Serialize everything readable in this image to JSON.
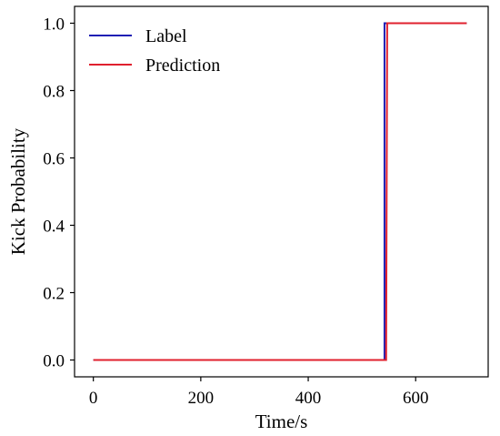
{
  "chart_data": {
    "type": "line",
    "title": "",
    "xlabel": "Time/s",
    "ylabel": "Kick Probability",
    "xlim": [
      -35,
      735
    ],
    "ylim": [
      -0.05,
      1.05
    ],
    "xticks": [
      0,
      200,
      400,
      600
    ],
    "yticks": [
      0.0,
      0.2,
      0.4,
      0.6,
      0.8,
      1.0
    ],
    "xtick_labels": [
      "0",
      "200",
      "400",
      "600"
    ],
    "ytick_labels": [
      "0.0",
      "0.2",
      "0.4",
      "0.6",
      "0.8",
      "1.0"
    ],
    "grid": false,
    "legend": {
      "placement": "top-left"
    },
    "series": [
      {
        "name": "Label",
        "color": "#1f1fb4",
        "x": [
          0,
          542,
          542,
          695
        ],
        "y": [
          0,
          0,
          1,
          1
        ]
      },
      {
        "name": "Prediction",
        "color": "#e0202e",
        "x": [
          0,
          545,
          547,
          695
        ],
        "y": [
          0,
          0,
          1,
          1
        ]
      }
    ]
  }
}
